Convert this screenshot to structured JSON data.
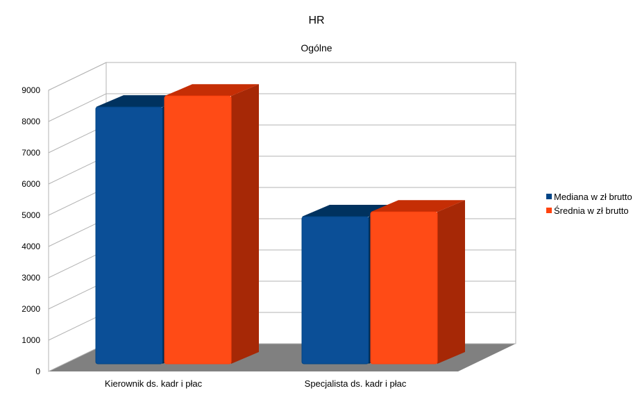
{
  "chart_data": {
    "type": "bar",
    "title": "HR",
    "subtitle": "Ogólne",
    "categories": [
      "Kierownik ds. kadr i płac",
      "Specjalista ds. kadr i płac"
    ],
    "series": [
      {
        "name": "Mediana w zł brutto",
        "values": [
          8200,
          4700
        ],
        "color": "#004586"
      },
      {
        "name": "Średnia w zł brutto",
        "values": [
          8550,
          4850
        ],
        "color": "#ff420e"
      }
    ],
    "y_ticks": [
      "0",
      "1000",
      "2000",
      "3000",
      "4000",
      "5000",
      "6000",
      "7000",
      "8000",
      "9000"
    ],
    "ylim": [
      0,
      9000
    ],
    "grid": true,
    "legend_position": "right",
    "style": "3d"
  }
}
